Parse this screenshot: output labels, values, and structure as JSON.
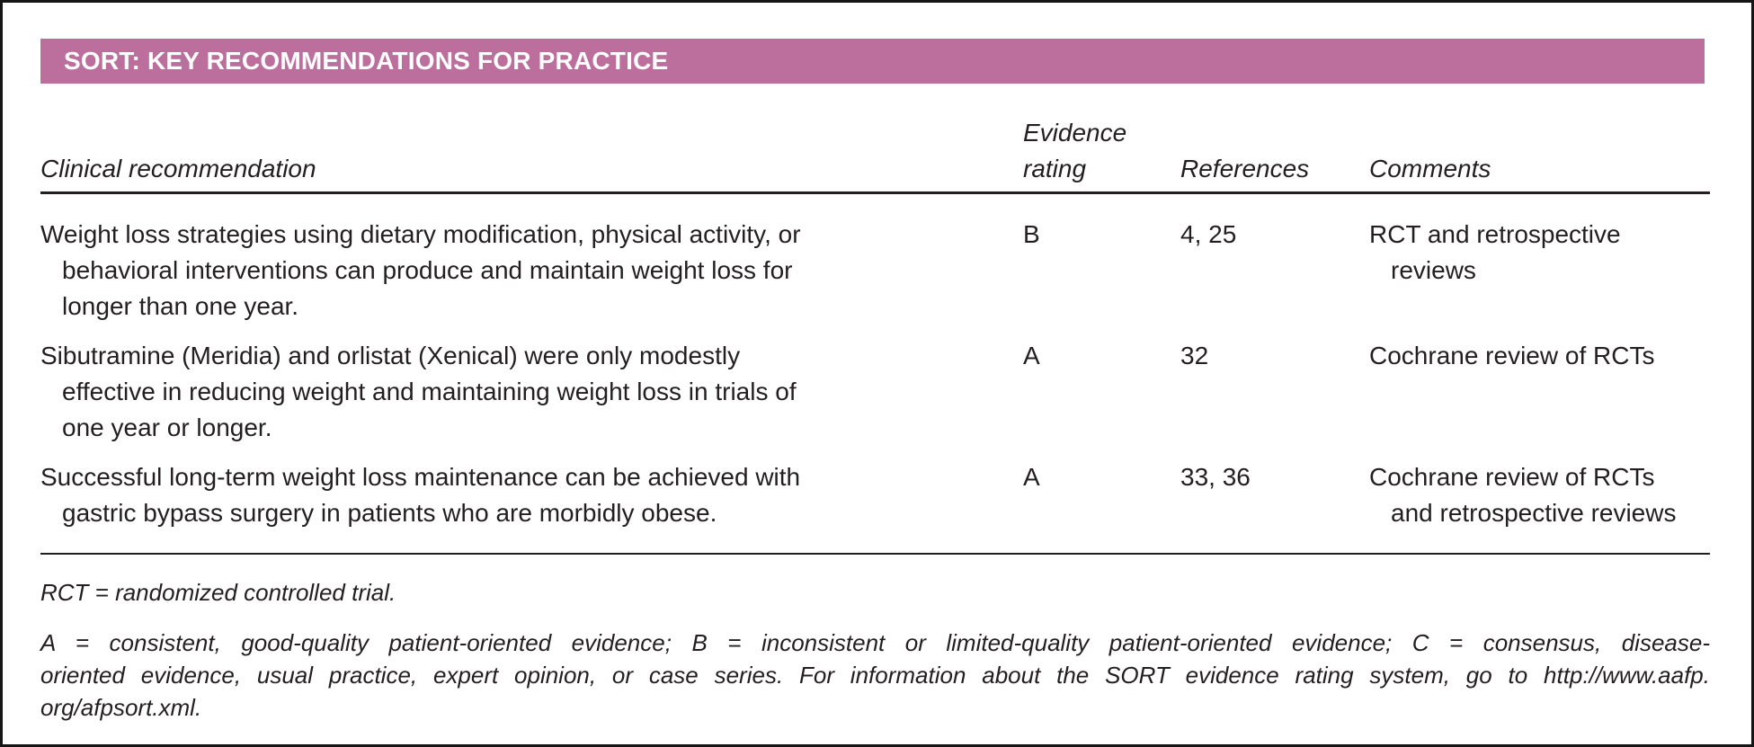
{
  "colors": {
    "title_bar_background": "#bc6f9c",
    "title_text": "#ffffff",
    "body_text": "#231f20",
    "rule": "#231f20",
    "frame_border": "#151515"
  },
  "title_bar": {
    "title": "SORT: KEY RECOMMENDATIONS FOR PRACTICE"
  },
  "table": {
    "columns": [
      "Clinical recommendation",
      "Evidence rating",
      "References",
      "Comments"
    ],
    "rows": [
      {
        "recommendation": [
          "Weight loss strategies using dietary modification, physical activity, or",
          "behavioral interventions can produce and maintain weight loss for",
          "longer than one year."
        ],
        "evidence_rating": "B",
        "references": "4, 25",
        "comments": [
          "RCT and retrospective",
          "reviews"
        ]
      },
      {
        "recommendation": [
          "Sibutramine (Meridia) and orlistat (Xenical) were only modestly",
          "effective in reducing weight and maintaining weight loss in trials of",
          "one year or longer."
        ],
        "evidence_rating": "A",
        "references": "32",
        "comments": [
          "Cochrane review of RCTs"
        ]
      },
      {
        "recommendation": [
          "Successful long-term weight loss maintenance can be achieved with",
          "gastric bypass surgery in patients who are morbidly obese."
        ],
        "evidence_rating": "A",
        "references": "33, 36",
        "comments": [
          "Cochrane review of RCTs",
          "and retrospective reviews"
        ]
      }
    ]
  },
  "footnotes": {
    "abbreviation": "RCT = randomized controlled trial.",
    "rating_key_lines": [
      "A = consistent, good-quality patient-oriented evidence; B = inconsistent or limited-quality patient-oriented evidence; C = consensus, disease-",
      "oriented evidence, usual practice, expert opinion, or case series. For information about the SORT evidence rating system, go to http://www.aafp.",
      "org/afpsort.xml."
    ]
  }
}
